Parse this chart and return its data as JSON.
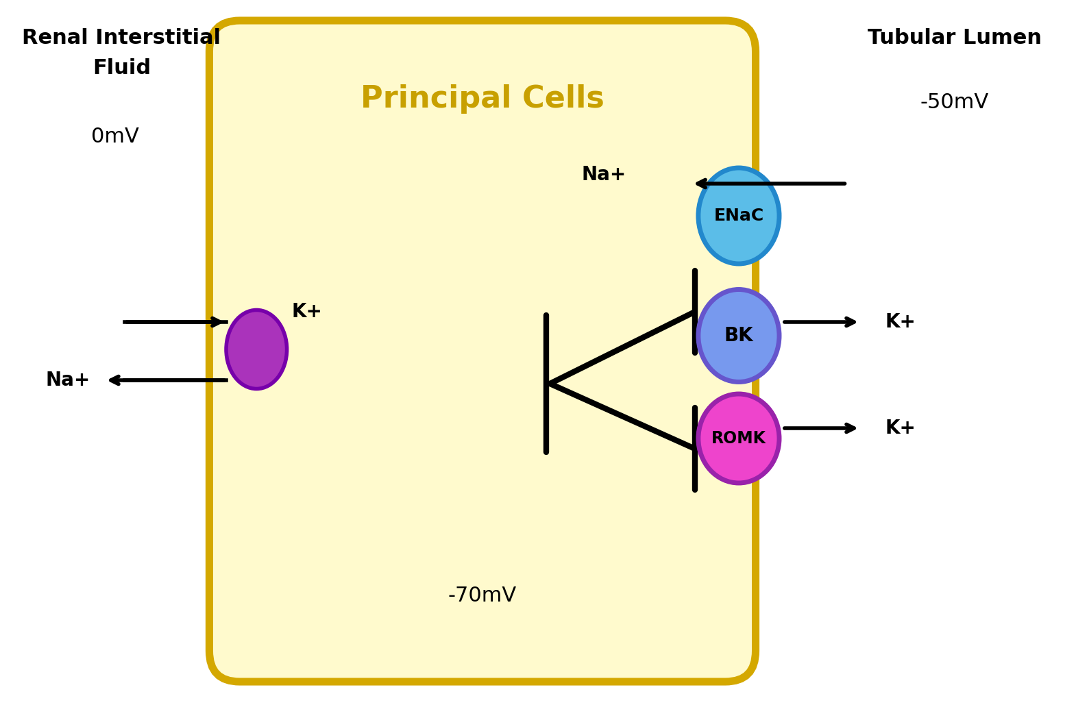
{
  "background_color": "#ffffff",
  "cell_color": "#fffacd",
  "cell_border_color": "#d4a800",
  "title_cell": "Principal Cells",
  "label_renal_line1": "Renal Interstitial",
  "label_renal_line2": "Fluid",
  "label_0mV": "0mV",
  "label_tubular_lumen": "Tubular Lumen",
  "label_minus50mV": "-50mV",
  "label_minus70mV": "-70mV",
  "enac_color": "#5bbde8",
  "enac_border_color": "#2288cc",
  "bk_color": "#7799ee",
  "bk_border_color": "#6655cc",
  "romk_color": "#ee44cc",
  "romk_border_color": "#9922aa",
  "pump_color": "#aa33bb",
  "pump_border_color": "#7700aa"
}
